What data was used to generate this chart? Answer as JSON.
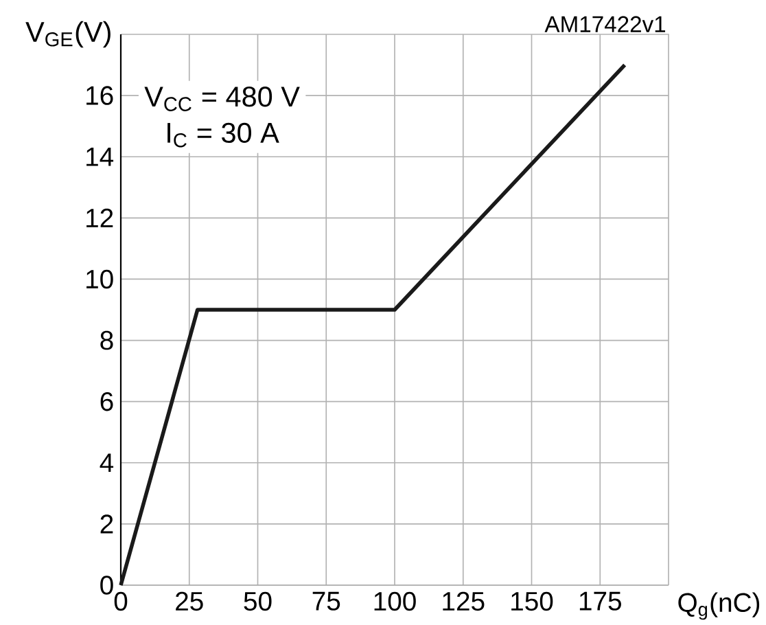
{
  "chart_data": {
    "type": "line",
    "xlabel": "Q$_{g}$(nC)",
    "ylabel": "V$_{GE}$(V)",
    "annotations": [
      "V$_{CC}$ = 480 V",
      "I$_{C}$ = 30 A",
      "AM17422v1"
    ],
    "x": [
      0,
      28,
      100,
      184
    ],
    "series": [
      {
        "color": "#1a1a1a",
        "values": [
          0,
          9,
          9,
          17
        ]
      }
    ],
    "xlim": [
      0,
      200
    ],
    "xticks": [
      0,
      25,
      50,
      75,
      100,
      125,
      150,
      175
    ],
    "ylim": [
      0,
      18
    ],
    "yticks": [
      0,
      2,
      4,
      6,
      8,
      10,
      12,
      14,
      16
    ],
    "grid": true,
    "marker": "none",
    "line_style": "solid"
  }
}
